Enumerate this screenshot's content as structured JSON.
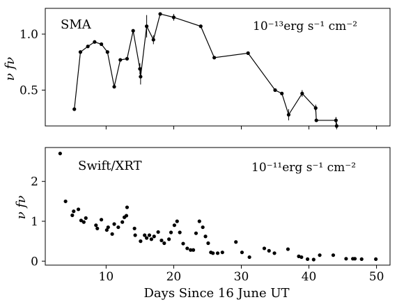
{
  "chart_data": [
    {
      "type": "line",
      "panel": "top",
      "label": "SMA",
      "units": "10⁻¹³erg s⁻¹ cm⁻²",
      "ylabel": "ν fν",
      "xlim": [
        1,
        52
      ],
      "ylim": [
        0.18,
        1.23
      ],
      "yticks": [
        0.5,
        1.0
      ],
      "ytick_labels": [
        "0.5",
        "1.0"
      ],
      "xticks": [
        10,
        20,
        30,
        40,
        50
      ],
      "grid": false,
      "line_color": "#000000",
      "series": [
        {
          "x": [
            5.3,
            6.2,
            7.3,
            8.3,
            9.3,
            10.2,
            11.2,
            12.1,
            13.1,
            14.0,
            15.0,
            15.1,
            16.0,
            17.0,
            18.0,
            20.0,
            24.0,
            26.0,
            31.0,
            35.0,
            36.0,
            37.0,
            39.0,
            41.0,
            41.1,
            44.0,
            44.1
          ],
          "y": [
            0.33,
            0.84,
            0.89,
            0.93,
            0.91,
            0.84,
            0.53,
            0.77,
            0.78,
            1.03,
            0.69,
            0.62,
            1.07,
            0.95,
            1.18,
            1.15,
            1.07,
            0.79,
            0.83,
            0.5,
            0.47,
            0.28,
            0.47,
            0.34,
            0.23,
            0.23,
            0.18
          ],
          "yerr": [
            0,
            0,
            0,
            0,
            0,
            0,
            0,
            0,
            0,
            0,
            0.05,
            0.07,
            0.1,
            0.04,
            0,
            0.03,
            0,
            0,
            0,
            0,
            0,
            0.05,
            0.03,
            0.03,
            0,
            0.03,
            0.03
          ]
        }
      ]
    },
    {
      "type": "scatter",
      "panel": "bottom",
      "label": "Swift/XRT",
      "units": "10⁻¹¹erg s⁻¹ cm⁻²",
      "ylabel": "ν fν",
      "xlabel": "Days Since 16 June UT",
      "xlim": [
        1,
        52
      ],
      "ylim": [
        -0.1,
        2.85
      ],
      "yticks": [
        0,
        1,
        2
      ],
      "ytick_labels": [
        "0",
        "1",
        "2"
      ],
      "xticks": [
        10,
        20,
        30,
        40,
        50
      ],
      "xtick_labels": [
        "10",
        "20",
        "30",
        "40",
        "50"
      ],
      "grid": false,
      "marker_color": "#000000",
      "series": [
        {
          "x": [
            3.2,
            4.0,
            5.0,
            5.2,
            5.9,
            6.3,
            6.7,
            7.0,
            8.5,
            8.7,
            9.3,
            10.1,
            10.3,
            10.9,
            11.2,
            11.8,
            12.4,
            12.7,
            13.0,
            13.1,
            14.2,
            14.3,
            15.1,
            15.7,
            16.0,
            16.4,
            16.7,
            17.1,
            17.7,
            18.2,
            18.6,
            19.3,
            19.6,
            20.1,
            20.5,
            20.9,
            21.4,
            22.0,
            22.5,
            22.9,
            23.3,
            23.8,
            24.3,
            24.7,
            25.1,
            25.5,
            25.8,
            26.5,
            27.2,
            29.2,
            30.1,
            31.2,
            33.4,
            34.1,
            34.9,
            36.9,
            38.5,
            38.9,
            39.8,
            40.7,
            41.6,
            43.6,
            45.5,
            46.5,
            46.8,
            47.8,
            49.9
          ],
          "y": [
            2.7,
            1.5,
            1.15,
            1.25,
            1.3,
            1.02,
            0.98,
            1.08,
            0.9,
            0.82,
            1.04,
            0.78,
            0.85,
            0.68,
            0.93,
            0.85,
            0.98,
            1.1,
            1.14,
            1.35,
            0.82,
            0.65,
            0.5,
            0.65,
            0.58,
            0.65,
            0.55,
            0.62,
            0.73,
            0.52,
            0.45,
            0.55,
            0.72,
            0.9,
            1.0,
            0.72,
            0.44,
            0.32,
            0.28,
            0.28,
            0.7,
            1.0,
            0.85,
            0.62,
            0.45,
            0.22,
            0.2,
            0.2,
            0.22,
            0.48,
            0.22,
            0.1,
            0.32,
            0.26,
            0.2,
            0.3,
            0.12,
            0.1,
            0.05,
            0.04,
            0.15,
            0.15,
            0.06,
            0.06,
            0.06,
            0.05,
            0.05
          ]
        }
      ]
    }
  ]
}
